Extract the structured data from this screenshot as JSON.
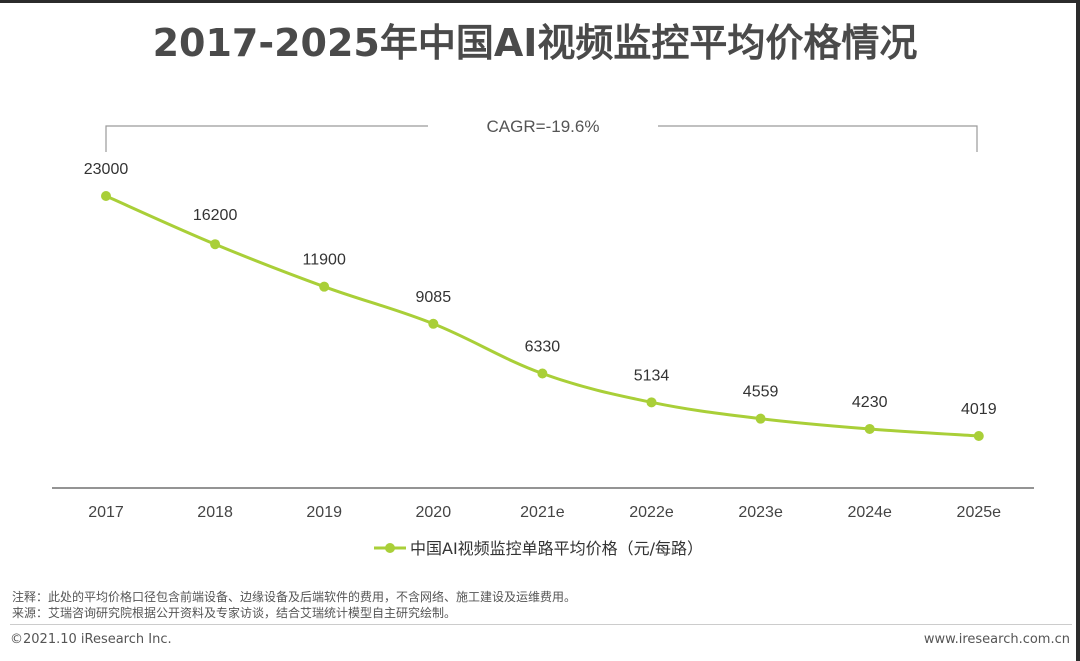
{
  "title": "2017-2025年中国AI视频监控平均价格情况",
  "cagr_label": "CAGR=-19.6%",
  "chart_data": {
    "type": "line",
    "title": "2017-2025年中国AI视频监控平均价格情况",
    "categories": [
      "2017",
      "2018",
      "2019",
      "2020",
      "2021e",
      "2022e",
      "2023e",
      "2024e",
      "2025e"
    ],
    "series": [
      {
        "name": "中国AI视频监控单路平均价格（元/每路）",
        "values": [
          23000,
          16200,
          11900,
          9085,
          6330,
          5134,
          4559,
          4230,
          4019
        ],
        "color": "#a9cf38"
      }
    ],
    "data_labels": [
      "23000",
      "16200",
      "11900",
      "9085",
      "6330",
      "5134",
      "4559",
      "4230",
      "4019"
    ],
    "annotation": "CAGR=-19.6%",
    "legend_position": "bottom",
    "grid": false
  },
  "notes": {
    "note1": "注释：此处的平均价格口径包含前端设备、边缘设备及后端软件的费用，不含网络、施工建设及运维费用。",
    "note2": "来源：艾瑞咨询研究院根据公开资料及专家访谈，结合艾瑞统计模型自主研究绘制。"
  },
  "footer": {
    "left": "©2021.10 iResearch Inc.",
    "right": "www.iresearch.com.cn"
  }
}
